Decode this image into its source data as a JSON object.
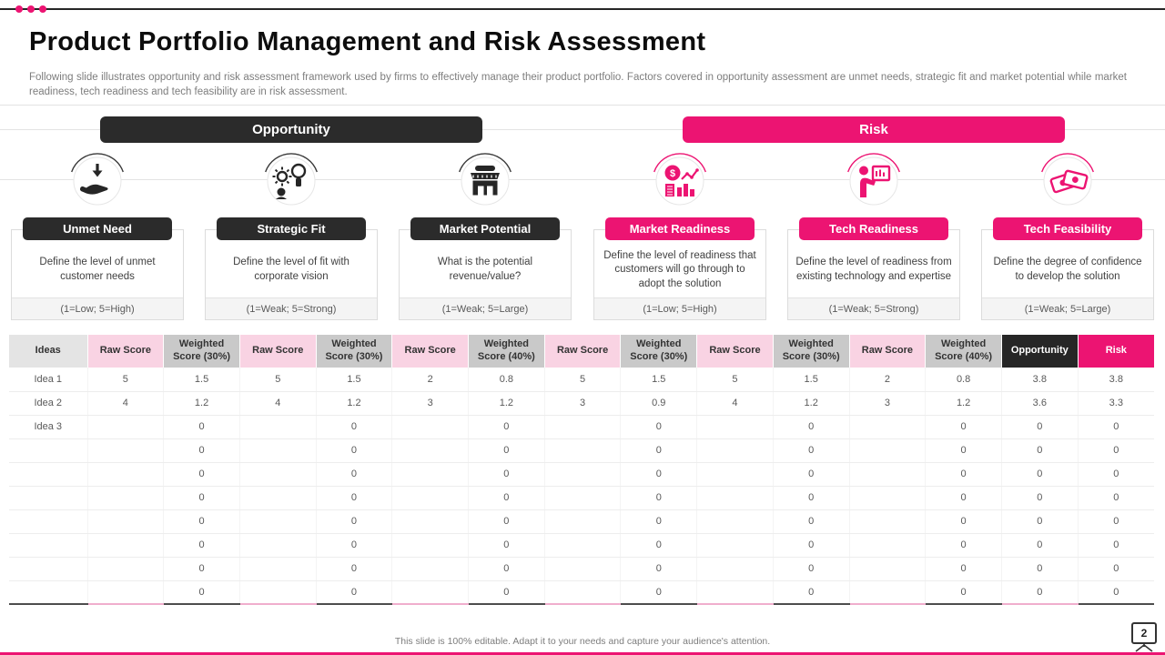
{
  "slide": {
    "title": "Product Portfolio Management and Risk Assessment",
    "subtitle": "Following slide illustrates opportunity and risk assessment framework used by firms to effectively manage their product portfolio. Factors covered in opportunity assessment are unmet needs, strategic fit and market potential while market readiness, tech readiness and tech feasibility are in risk assessment.",
    "footer": "This slide is 100% editable. Adapt it to your needs and capture your audience's attention.",
    "page_number": "2"
  },
  "colors": {
    "accent_pink": "#ec1472",
    "dark": "#2b2b2b",
    "header_pink_light": "#f9d3e3",
    "header_gray": "#c9c9c9",
    "header_neutral": "#e4e4e4"
  },
  "groups": [
    {
      "label": "Opportunity",
      "theme": "dark"
    },
    {
      "label": "Risk",
      "theme": "pink"
    }
  ],
  "factors": [
    {
      "name": "Unmet Need",
      "icon": "hand-receive-icon",
      "theme": "dark",
      "description": "Define the level of unmet customer needs",
      "scale": "(1=Low; 5=High)"
    },
    {
      "name": "Strategic Fit",
      "icon": "idea-head-gear-icon",
      "theme": "dark",
      "description": "Define the level of fit with corporate vision",
      "scale": "(1=Weak; 5=Strong)"
    },
    {
      "name": "Market Potential",
      "icon": "market-building-icon",
      "theme": "dark",
      "description": "What is the potential revenue/value?",
      "scale": "(1=Weak; 5=Large)"
    },
    {
      "name": "Market Readiness",
      "icon": "finance-chart-icon",
      "theme": "pink",
      "description": "Define the level of readiness that customers will go through to adopt the solution",
      "scale": "(1=Low; 5=High)"
    },
    {
      "name": "Tech Readiness",
      "icon": "presenter-board-icon",
      "theme": "pink",
      "description": "Define the level of readiness from existing technology and expertise",
      "scale": "(1=Weak; 5=Strong)"
    },
    {
      "name": "Tech Feasibility",
      "icon": "banknotes-icon",
      "theme": "pink",
      "description": "Define the degree of confidence to develop the solution",
      "scale": "(1=Weak; 5=Large)"
    }
  ],
  "table": {
    "headers": [
      {
        "label": "Ideas",
        "theme": "neutral"
      },
      {
        "label": "Raw Score",
        "theme": "pink-light"
      },
      {
        "label": "Weighted Score (30%)",
        "theme": "gray"
      },
      {
        "label": "Raw Score",
        "theme": "pink-light"
      },
      {
        "label": "Weighted Score (30%)",
        "theme": "gray"
      },
      {
        "label": "Raw Score",
        "theme": "pink-light"
      },
      {
        "label": "Weighted Score (40%)",
        "theme": "gray"
      },
      {
        "label": "Raw Score",
        "theme": "pink-light"
      },
      {
        "label": "Weighted Score (30%)",
        "theme": "gray"
      },
      {
        "label": "Raw Score",
        "theme": "pink-light"
      },
      {
        "label": "Weighted Score (30%)",
        "theme": "gray"
      },
      {
        "label": "Raw Score",
        "theme": "pink-light"
      },
      {
        "label": "Weighted Score (40%)",
        "theme": "gray"
      },
      {
        "label": "Opportunity",
        "theme": "dark"
      },
      {
        "label": "Risk",
        "theme": "accent"
      }
    ],
    "rows": [
      [
        "Idea 1",
        "5",
        "1.5",
        "5",
        "1.5",
        "2",
        "0.8",
        "5",
        "1.5",
        "5",
        "1.5",
        "2",
        "0.8",
        "3.8",
        "3.8"
      ],
      [
        "Idea 2",
        "4",
        "1.2",
        "4",
        "1.2",
        "3",
        "1.2",
        "3",
        "0.9",
        "4",
        "1.2",
        "3",
        "1.2",
        "3.6",
        "3.3"
      ],
      [
        "Idea 3",
        "",
        "0",
        "",
        "0",
        "",
        "0",
        "",
        "0",
        "",
        "0",
        "",
        "0",
        "0",
        "0"
      ],
      [
        "",
        "",
        "0",
        "",
        "0",
        "",
        "0",
        "",
        "0",
        "",
        "0",
        "",
        "0",
        "0",
        "0"
      ],
      [
        "",
        "",
        "0",
        "",
        "0",
        "",
        "0",
        "",
        "0",
        "",
        "0",
        "",
        "0",
        "0",
        "0"
      ],
      [
        "",
        "",
        "0",
        "",
        "0",
        "",
        "0",
        "",
        "0",
        "",
        "0",
        "",
        "0",
        "0",
        "0"
      ],
      [
        "",
        "",
        "0",
        "",
        "0",
        "",
        "0",
        "",
        "0",
        "",
        "0",
        "",
        "0",
        "0",
        "0"
      ],
      [
        "",
        "",
        "0",
        "",
        "0",
        "",
        "0",
        "",
        "0",
        "",
        "0",
        "",
        "0",
        "0",
        "0"
      ],
      [
        "",
        "",
        "0",
        "",
        "0",
        "",
        "0",
        "",
        "0",
        "",
        "0",
        "",
        "0",
        "0",
        "0"
      ],
      [
        "",
        "",
        "0",
        "",
        "0",
        "",
        "0",
        "",
        "0",
        "",
        "0",
        "",
        "0",
        "0",
        "0"
      ]
    ]
  }
}
